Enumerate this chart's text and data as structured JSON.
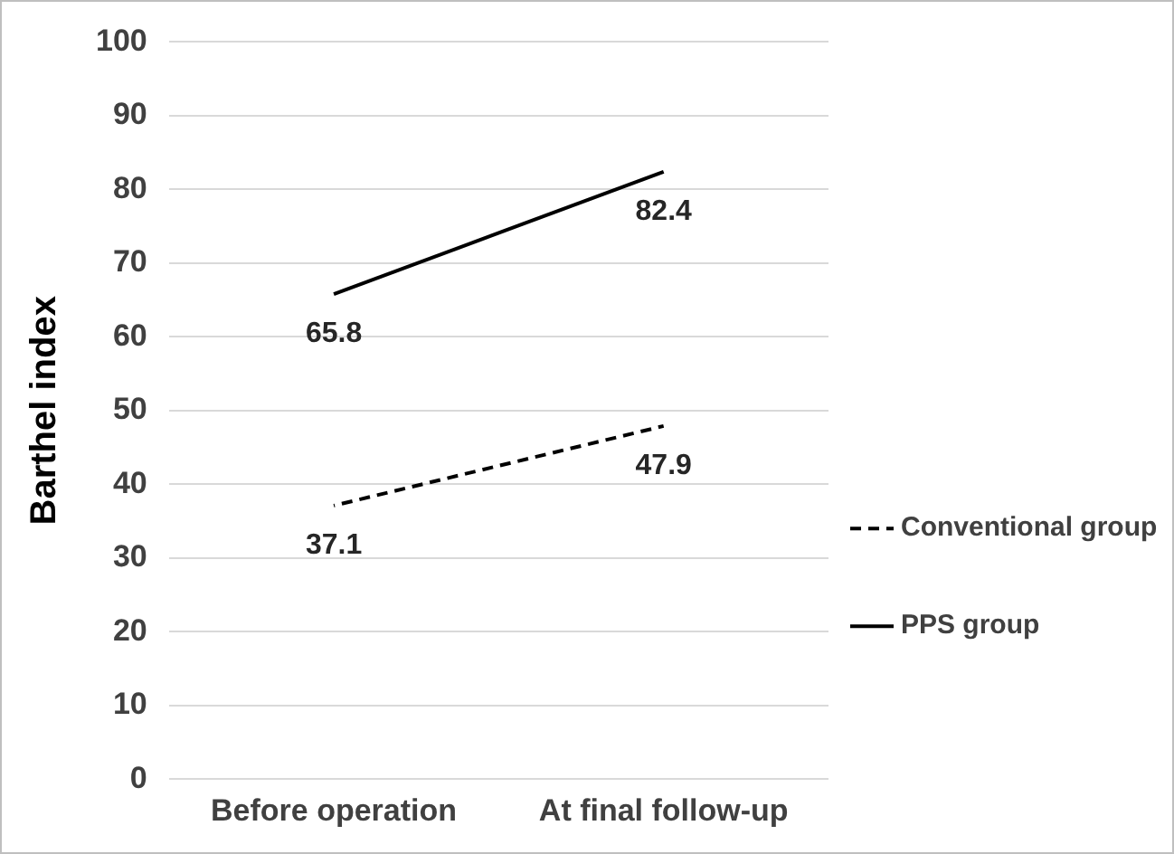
{
  "chart_data": {
    "type": "line",
    "ylabel": "Barthel index",
    "categories": [
      "Before operation",
      "At final follow-up"
    ],
    "series": [
      {
        "name": "Conventional group",
        "color": "#000000",
        "line_style": "dashed",
        "values": [
          37.1,
          47.9
        ]
      },
      {
        "name": "PPS group",
        "color": "#000000",
        "line_style": "solid",
        "values": [
          65.8,
          82.4
        ]
      }
    ],
    "ylim": [
      0,
      100
    ],
    "yticks": [
      0,
      10,
      20,
      30,
      40,
      50,
      60,
      70,
      80,
      90,
      100
    ],
    "grid": "y",
    "legend": "right",
    "marker": "none",
    "data_labels": true
  }
}
